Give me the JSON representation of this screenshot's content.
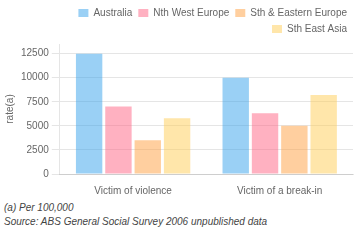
{
  "chart_data": {
    "type": "bar",
    "categories": [
      "Victim of violence",
      "Victim of a break-in"
    ],
    "series": [
      {
        "name": "Australia",
        "values": [
          12500,
          10000
        ]
      },
      {
        "name": "Nth West Europe",
        "values": [
          7000,
          6300
        ]
      },
      {
        "name": "Sth & Eastern Europe",
        "values": [
          3500,
          5000
        ]
      },
      {
        "name": "Sth East Asia",
        "values": [
          5800,
          8200
        ]
      }
    ],
    "ylabel": "rate(a)",
    "ylim": [
      0,
      13500
    ],
    "yticks": [
      0,
      2500,
      5000,
      7500,
      10000,
      12500
    ],
    "grid": true,
    "legend": "upper right",
    "annotations": [
      "(a) Per 100,000",
      "Source: ABS General Social Survey 2006 unpublished data"
    ]
  }
}
